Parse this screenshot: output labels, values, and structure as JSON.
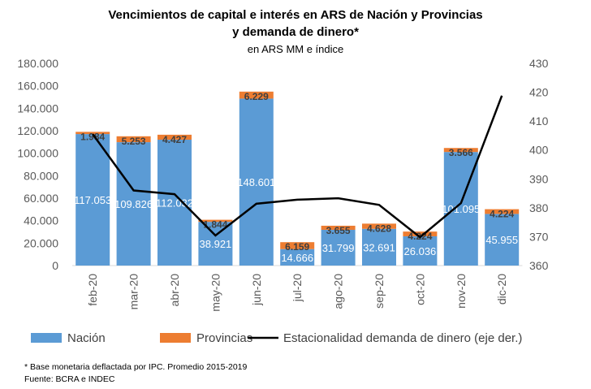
{
  "chart_data": {
    "type": "bar",
    "stacked": true,
    "title": "Vencimientos de capital e interés en ARS de Nación y Provincias",
    "title_line2": "y demanda de dinero*",
    "subtitle": "en ARS MM e índice",
    "categories": [
      "feb-20",
      "mar-20",
      "abr-20",
      "may-20",
      "jun-20",
      "jul-20",
      "ago-20",
      "sep-20",
      "oct-20",
      "nov-20",
      "dic-20"
    ],
    "series": [
      {
        "name": "Nación",
        "type": "bar",
        "axis": "left",
        "color": "#5B9BD5",
        "values": [
          117053,
          109826,
          112032,
          38921,
          148601,
          14666,
          31799,
          32691,
          26036,
          101095,
          45955
        ],
        "labels": [
          "117.053",
          "109.826",
          "112.032",
          "38.921",
          "148.601",
          "14.666",
          "31.799",
          "32.691",
          "26.036",
          "101.095",
          "45.955"
        ]
      },
      {
        "name": "Provincias",
        "type": "bar",
        "axis": "left",
        "color": "#ED7D31",
        "values": [
          1984,
          5253,
          4427,
          1844,
          6229,
          6159,
          3655,
          4628,
          4224,
          3566,
          4224
        ],
        "labels": [
          "1.984",
          "5.253",
          "4.427",
          "1.844",
          "6.229",
          "6.159",
          "3.655",
          "4.628",
          "4.224",
          "3.566",
          "4.224"
        ]
      },
      {
        "name": "Estacionalidad demanda de dinero (eje der.)",
        "type": "line",
        "axis": "right",
        "color": "#000000",
        "values": [
          405.5,
          386,
          384.7,
          370.4,
          381.4,
          382.8,
          383.3,
          381,
          369.8,
          381.6,
          418.8
        ]
      }
    ],
    "ylim": [
      0,
      180000
    ],
    "yticks": [
      "0",
      "20.000",
      "40.000",
      "60.000",
      "80.000",
      "100.000",
      "120.000",
      "140.000",
      "160.000",
      "180.000"
    ],
    "y2lim": [
      360,
      430
    ],
    "y2ticks": [
      "360",
      "370",
      "380",
      "390",
      "400",
      "410",
      "420",
      "430"
    ],
    "legend_position": "bottom",
    "grid": false
  },
  "notes": [
    "* Base monetaria deflactada por IPC. Promedio 2015-2019",
    "Fuente: BCRA e INDEC"
  ]
}
